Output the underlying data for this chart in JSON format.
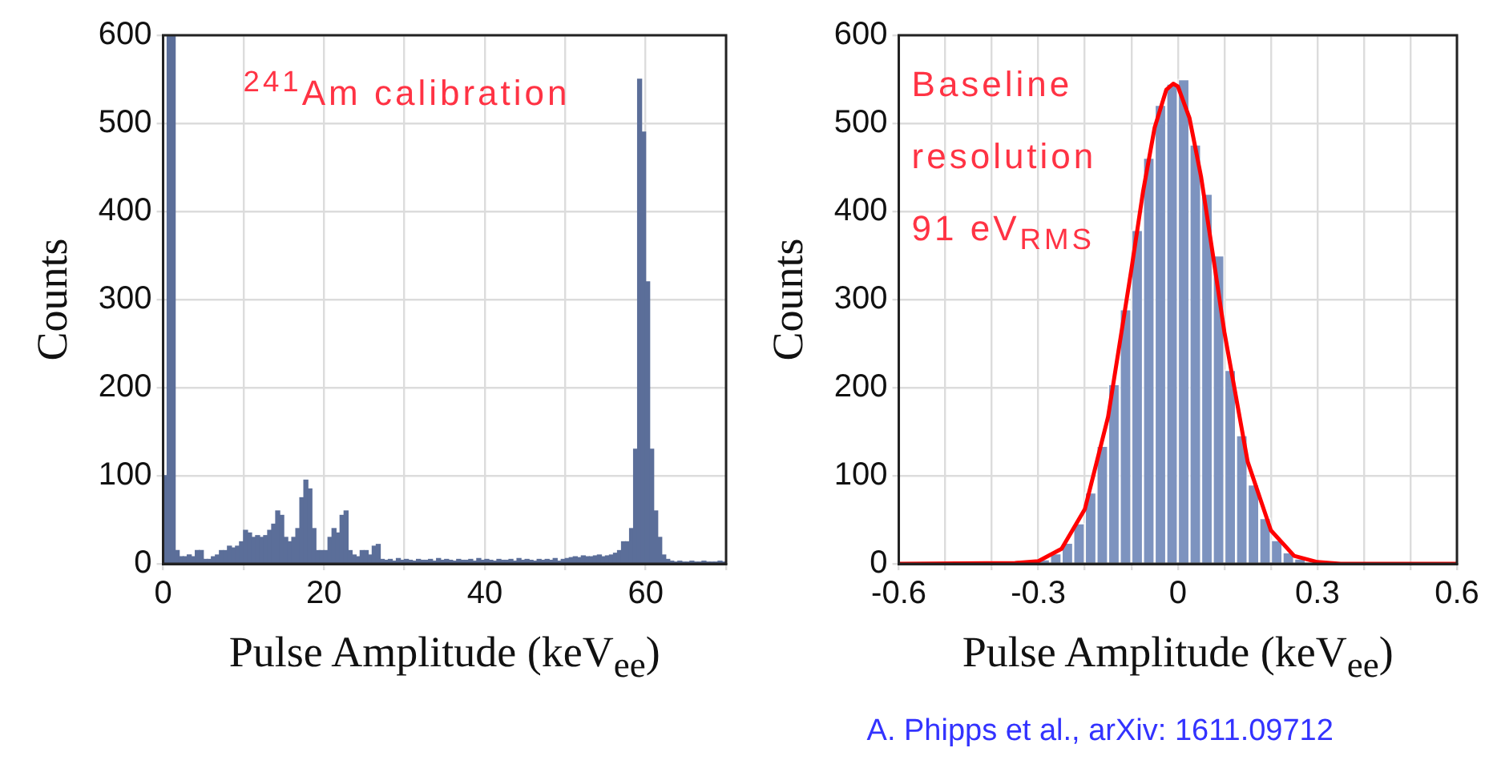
{
  "chart_data": [
    {
      "type": "histogram",
      "xlabel": "Pulse Amplitude (keV$_{ee}$)",
      "ylabel": "Counts",
      "annotations": [
        "$^{241}$Am calibration"
      ],
      "bins": [
        0,
        0.5,
        1,
        1.5,
        2,
        2.5,
        3,
        3.5,
        4,
        4.5,
        5,
        5.5,
        6,
        6.5,
        7,
        7.5,
        8,
        8.5,
        9,
        9.5,
        10,
        10.5,
        11,
        11.5,
        12,
        12.5,
        13,
        13.5,
        14,
        14.5,
        15,
        15.5,
        16,
        16.5,
        17,
        17.5,
        18,
        18.5,
        19,
        19.5,
        20,
        20.5,
        21,
        21.5,
        22,
        22.5,
        23,
        23.5,
        24,
        24.5,
        25,
        25.5,
        26,
        26.5,
        27,
        27.5,
        28,
        28.5,
        29,
        29.5,
        30,
        30.5,
        31,
        31.5,
        32,
        32.5,
        33,
        33.5,
        34,
        34.5,
        35,
        35.5,
        36,
        36.5,
        37,
        37.5,
        38,
        38.5,
        39,
        39.5,
        40,
        40.5,
        41,
        41.5,
        42,
        42.5,
        43,
        43.5,
        44,
        44.5,
        45,
        45.5,
        46,
        46.5,
        47,
        47.5,
        48,
        48.5,
        49,
        49.5,
        50,
        50.5,
        51,
        51.5,
        52,
        52.5,
        53,
        53.5,
        54,
        54.5,
        55,
        55.5,
        56,
        56.5,
        57,
        57.5,
        58,
        58.5,
        59,
        59.5,
        60,
        60.5,
        61,
        61.5,
        62,
        62.5,
        63,
        63.5,
        64,
        64.5,
        65,
        65.5,
        66,
        66.5,
        67,
        67.5,
        68,
        68.5,
        69,
        69.5,
        70
      ],
      "values": [
        100,
        600,
        600,
        15,
        8,
        8,
        10,
        8,
        15,
        15,
        5,
        5,
        8,
        10,
        15,
        15,
        20,
        18,
        20,
        25,
        38,
        35,
        30,
        32,
        30,
        32,
        38,
        45,
        60,
        55,
        30,
        25,
        30,
        40,
        75,
        95,
        85,
        40,
        15,
        15,
        15,
        30,
        40,
        35,
        55,
        60,
        15,
        10,
        8,
        15,
        15,
        10,
        20,
        22,
        5,
        4,
        5,
        3,
        6,
        4,
        5,
        4,
        3,
        5,
        4,
        4,
        5,
        3,
        6,
        4,
        5,
        4,
        3,
        5,
        4,
        4,
        5,
        3,
        6,
        4,
        5,
        4,
        3,
        5,
        4,
        4,
        5,
        3,
        6,
        4,
        5,
        4,
        3,
        5,
        4,
        5,
        4,
        6,
        3,
        5,
        6,
        7,
        8,
        7,
        9,
        8,
        8,
        9,
        10,
        8,
        9,
        10,
        12,
        15,
        25,
        25,
        40,
        130,
        550,
        490,
        320,
        130,
        60,
        30,
        10,
        5,
        3,
        2,
        3,
        2,
        2,
        3,
        2,
        2,
        3,
        2,
        2,
        2,
        3,
        2
      ],
      "color": "#5b6e99",
      "xlim": [
        0,
        70
      ],
      "ylim": [
        0,
        600
      ],
      "xticks": [
        0,
        {
          "value": 10,
          "label": null
        },
        20,
        {
          "value": 30,
          "label": null
        },
        40,
        {
          "value": 50,
          "label": null
        },
        60,
        {
          "value": 70,
          "label": null
        }
      ],
      "yticks": [
        0,
        100,
        200,
        300,
        400,
        500,
        600
      ],
      "grid": true
    },
    {
      "type": "histogram",
      "xlabel": "Pulse Amplitude (keV$_{ee}$)",
      "ylabel": "Counts",
      "annotations": [
        "Baseline",
        "resolution",
        "91 eV$_{RMS}$",
        "A. Phipps et al., arXiv: 1611.09712"
      ],
      "series": [
        {
          "type": "histogram",
          "color": "#7d93bf",
          "bins": [
            -0.3,
            -0.275,
            -0.25,
            -0.225,
            -0.2,
            -0.175,
            -0.15,
            -0.125,
            -0.1,
            -0.075,
            -0.05,
            -0.025,
            0,
            0.025,
            0.05,
            0.075,
            0.1,
            0.125,
            0.15,
            0.175,
            0.2,
            0.225,
            0.25,
            0.275,
            0.3
          ],
          "values": [
            5,
            12,
            24,
            46,
            81,
            134,
            204,
            289,
            379,
            461,
            521,
            545,
            550,
            476,
            420,
            350,
            220,
            146,
            90,
            52,
            27,
            13,
            6,
            null
          ]
        },
        {
          "type": "line",
          "color": "#ff0000",
          "x": [
            -0.6,
            -0.35,
            -0.3,
            -0.25,
            -0.2,
            -0.15,
            -0.1,
            -0.075,
            -0.05,
            -0.025,
            -0.01,
            0,
            0.025,
            0.05,
            0.075,
            0.1,
            0.15,
            0.2,
            0.25,
            0.3,
            0.35,
            0.6
          ],
          "values": [
            0,
            1,
            3,
            17,
            62,
            167,
            334,
            422,
            495,
            538,
            545,
            542,
            506,
            439,
            352,
            263,
            116,
            38,
            9,
            2,
            0,
            0
          ]
        }
      ],
      "xlim": [
        -0.6,
        0.6
      ],
      "ylim": [
        0,
        600
      ],
      "xticks": [
        {
          "value": -0.6,
          "label": "-0.6"
        },
        {
          "value": -0.5,
          "label": null
        },
        {
          "value": -0.4,
          "label": null
        },
        {
          "value": -0.3,
          "label": "-0.3"
        },
        {
          "value": -0.2,
          "label": null
        },
        {
          "value": -0.1,
          "label": null
        },
        0,
        {
          "value": 0.1,
          "label": null
        },
        {
          "value": 0.2,
          "label": null
        },
        {
          "value": 0.3,
          "label": "0.3"
        },
        {
          "value": 0.4,
          "label": null
        },
        {
          "value": 0.5,
          "label": null
        },
        {
          "value": 0.6,
          "label": "0.6"
        }
      ],
      "yticks": [
        0,
        100,
        200,
        300,
        400,
        500,
        600
      ],
      "grid": true,
      "marker": "none"
    }
  ]
}
